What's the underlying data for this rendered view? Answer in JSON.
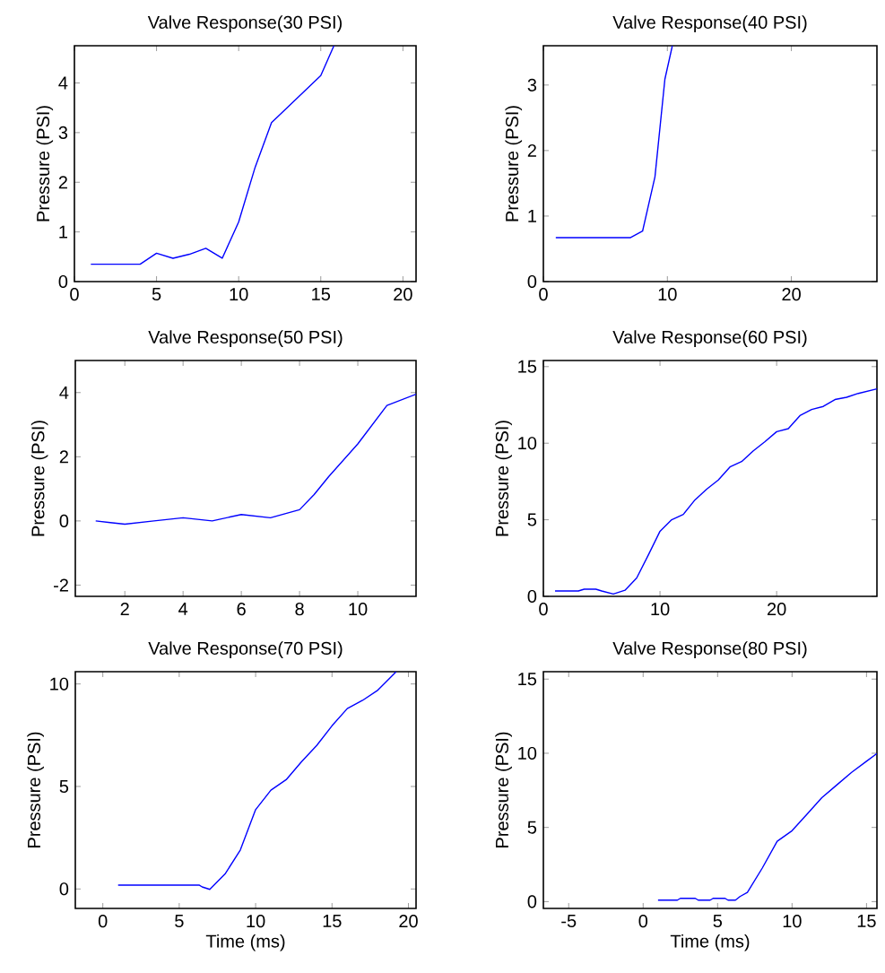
{
  "chart_data": [
    {
      "type": "line",
      "title": "Valve Response(30 PSI)",
      "ylabel": "Pressure (PSI)",
      "xlim": [
        0,
        20.8
      ],
      "ylim": [
        0,
        4.75
      ],
      "xticks": [
        0,
        5,
        10,
        15,
        20
      ],
      "yticks": [
        0,
        1,
        2,
        3,
        4
      ],
      "x": [
        1,
        4,
        5,
        6,
        7,
        8,
        9,
        10,
        11,
        12,
        15,
        15.8
      ],
      "series": [
        {
          "color": "#0000ff",
          "values": [
            0.35,
            0.35,
            0.57,
            0.47,
            0.55,
            0.67,
            0.47,
            1.2,
            2.3,
            3.2,
            4.15,
            4.75
          ]
        }
      ]
    },
    {
      "type": "line",
      "title": "Valve Response(40 PSI)",
      "ylabel": "Pressure (PSI)",
      "xlim": [
        0,
        26.9
      ],
      "ylim": [
        0,
        3.6
      ],
      "xticks": [
        0,
        10,
        20
      ],
      "yticks": [
        0,
        1,
        2,
        3
      ],
      "x": [
        1,
        7,
        8,
        9,
        9.8,
        10.4
      ],
      "series": [
        {
          "color": "#0000ff",
          "values": [
            0.67,
            0.67,
            0.77,
            1.6,
            3.09,
            3.6
          ]
        }
      ]
    },
    {
      "type": "line",
      "title": "Valve Response(50 PSI)",
      "ylabel": "Pressure (PSI)",
      "xlim": [
        0.3,
        12
      ],
      "ylim": [
        -2.35,
        5
      ],
      "xticks": [
        2,
        4,
        6,
        8,
        10
      ],
      "yticks": [
        -2,
        0,
        2,
        4
      ],
      "x": [
        1,
        1.5,
        2,
        3,
        4,
        5,
        6,
        6.5,
        7,
        8,
        8.5,
        9,
        10,
        11,
        12
      ],
      "series": [
        {
          "color": "#0000ff",
          "values": [
            0,
            -0.05,
            -0.1,
            0,
            0.1,
            0,
            0.2,
            0.15,
            0.1,
            0.35,
            0.82,
            1.38,
            2.4,
            3.6,
            3.95
          ]
        }
      ]
    },
    {
      "type": "line",
      "title": "Valve Response(60 PSI)",
      "ylabel": "Pressure (PSI)",
      "xlim": [
        0,
        28.6
      ],
      "ylim": [
        0,
        15.4
      ],
      "xticks": [
        0,
        10,
        20
      ],
      "yticks": [
        0,
        5,
        10,
        15
      ],
      "x": [
        1,
        3,
        3.5,
        4.5,
        5,
        6,
        7,
        8,
        9,
        10,
        11,
        12,
        13,
        14,
        15,
        16,
        17,
        18,
        19,
        20,
        21,
        22,
        23,
        24,
        25,
        26,
        27,
        28.6
      ],
      "series": [
        {
          "color": "#0000ff",
          "values": [
            0.35,
            0.35,
            0.47,
            0.47,
            0.35,
            0.15,
            0.4,
            1.2,
            2.7,
            4.25,
            5.0,
            5.35,
            6.3,
            7.0,
            7.6,
            8.45,
            8.8,
            9.5,
            10.1,
            10.75,
            10.95,
            11.8,
            12.2,
            12.4,
            12.85,
            13.0,
            13.25,
            13.55
          ]
        }
      ]
    },
    {
      "type": "line",
      "title": "Valve Response(70 PSI)",
      "xlabel": "Time (ms)",
      "ylabel": "Pressure (PSI)",
      "xlim": [
        -1.8,
        20.5
      ],
      "ylim": [
        -0.95,
        10.6
      ],
      "xticks": [
        0,
        5,
        10,
        15,
        20
      ],
      "yticks": [
        0,
        5,
        10
      ],
      "x": [
        1,
        6.3,
        6.5,
        7,
        8,
        9,
        10,
        11,
        12,
        13,
        14,
        15,
        16,
        17,
        18,
        19.2
      ],
      "series": [
        {
          "color": "#0000ff",
          "values": [
            0.19,
            0.19,
            0.1,
            -0.02,
            0.73,
            1.9,
            3.87,
            4.82,
            5.33,
            6.2,
            7.0,
            7.96,
            8.8,
            9.2,
            9.7,
            10.6
          ]
        }
      ]
    },
    {
      "type": "line",
      "title": "Valve Response(80 PSI)",
      "xlabel": "Time (ms)",
      "ylabel": "Pressure (PSI)",
      "xlim": [
        -6.7,
        15.7
      ],
      "ylim": [
        -0.46,
        15.5
      ],
      "xticks": [
        -5,
        0,
        5,
        10,
        15
      ],
      "yticks": [
        0,
        5,
        10,
        15
      ],
      "x": [
        1,
        2.3,
        2.5,
        3.5,
        3.7,
        4.5,
        4.7,
        5.5,
        5.7,
        6.2,
        6.5,
        7,
        8,
        9,
        10,
        11,
        12,
        13,
        14,
        15,
        15.7
      ],
      "series": [
        {
          "color": "#0000ff",
          "values": [
            0.1,
            0.1,
            0.22,
            0.22,
            0.1,
            0.1,
            0.22,
            0.22,
            0.1,
            0.1,
            0.34,
            0.62,
            2.26,
            4.07,
            4.78,
            5.89,
            7.0,
            7.86,
            8.71,
            9.46,
            9.98
          ]
        }
      ]
    }
  ]
}
